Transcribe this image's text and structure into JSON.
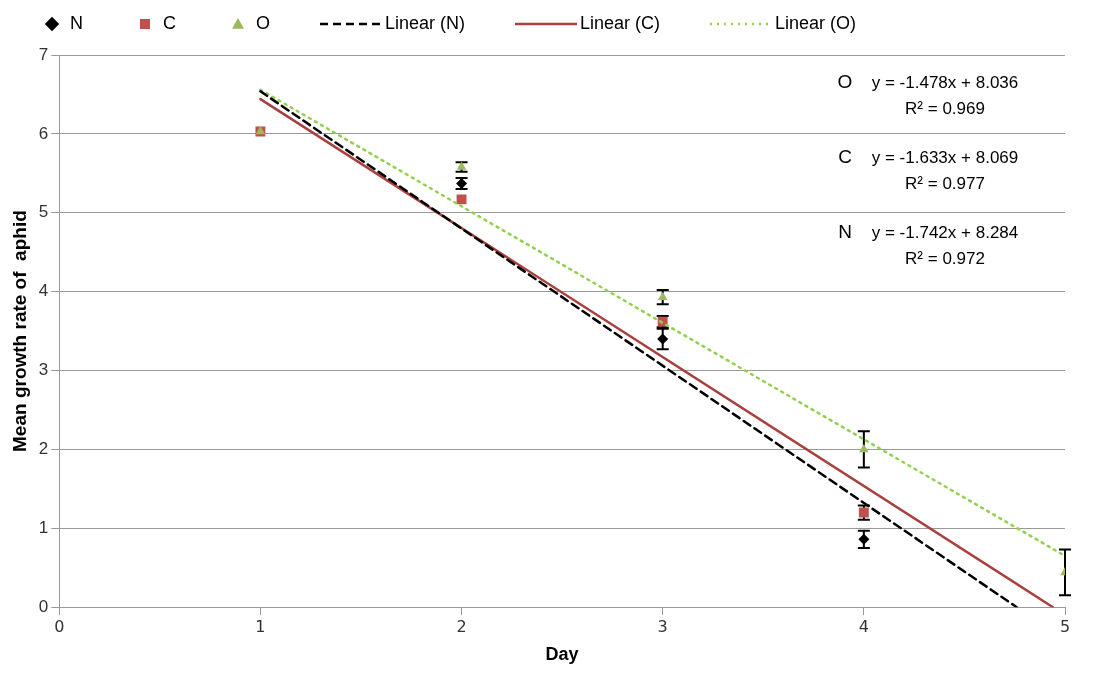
{
  "chart_data": {
    "type": "scatter",
    "xlabel": "Day",
    "ylabel": "Mean growth rate of  aphid",
    "xlim": [
      0,
      5
    ],
    "xticks": [
      0,
      1,
      2,
      3,
      4,
      5
    ],
    "ylim": [
      0,
      7
    ],
    "yticks": [
      0,
      1,
      2,
      3,
      4,
      5,
      6,
      7
    ],
    "grid": "y",
    "legend": "top",
    "series": [
      {
        "name": "N",
        "type": "scatter",
        "marker": "diamond",
        "color": "#000000",
        "x": [
          2,
          3,
          4
        ],
        "values": [
          5.37,
          3.4,
          0.86
        ],
        "errors": [
          0.07,
          0.13,
          0.11
        ]
      },
      {
        "name": "C",
        "type": "scatter",
        "marker": "square",
        "color": "#c0504d",
        "x": [
          1,
          2,
          3,
          4
        ],
        "values": [
          6.03,
          5.17,
          3.62,
          1.2
        ],
        "errors": [
          null,
          null,
          0.07,
          0.09
        ]
      },
      {
        "name": "O",
        "type": "scatter",
        "marker": "triangle",
        "color": "#9bbb59",
        "x": [
          1,
          2,
          3,
          4,
          5
        ],
        "values": [
          6.03,
          5.58,
          3.93,
          2.0,
          0.44
        ],
        "errors": [
          null,
          0.06,
          0.09,
          0.23,
          0.29
        ]
      },
      {
        "name": "Linear (N)",
        "type": "line",
        "line_style": "dashed",
        "color": "#000000",
        "x": [
          1,
          4.76
        ],
        "values": [
          6.54,
          0
        ]
      },
      {
        "name": "Linear (C)",
        "type": "line",
        "line_style": "solid",
        "color": "#a9403d",
        "x": [
          1,
          4.94
        ],
        "values": [
          6.44,
          0
        ]
      },
      {
        "name": "Linear (O)",
        "type": "line",
        "line_style": "dotted",
        "color": "#92d050",
        "x": [
          1,
          5
        ],
        "values": [
          6.56,
          0.65
        ]
      }
    ],
    "annotations": [
      "O",
      "y = -1.478x + 8.036",
      "R² = 0.969",
      "C",
      "y = -1.633x + 8.069",
      "R² = 0.977",
      "N",
      "y = -1.742x + 8.284",
      "R² = 0.972"
    ]
  }
}
